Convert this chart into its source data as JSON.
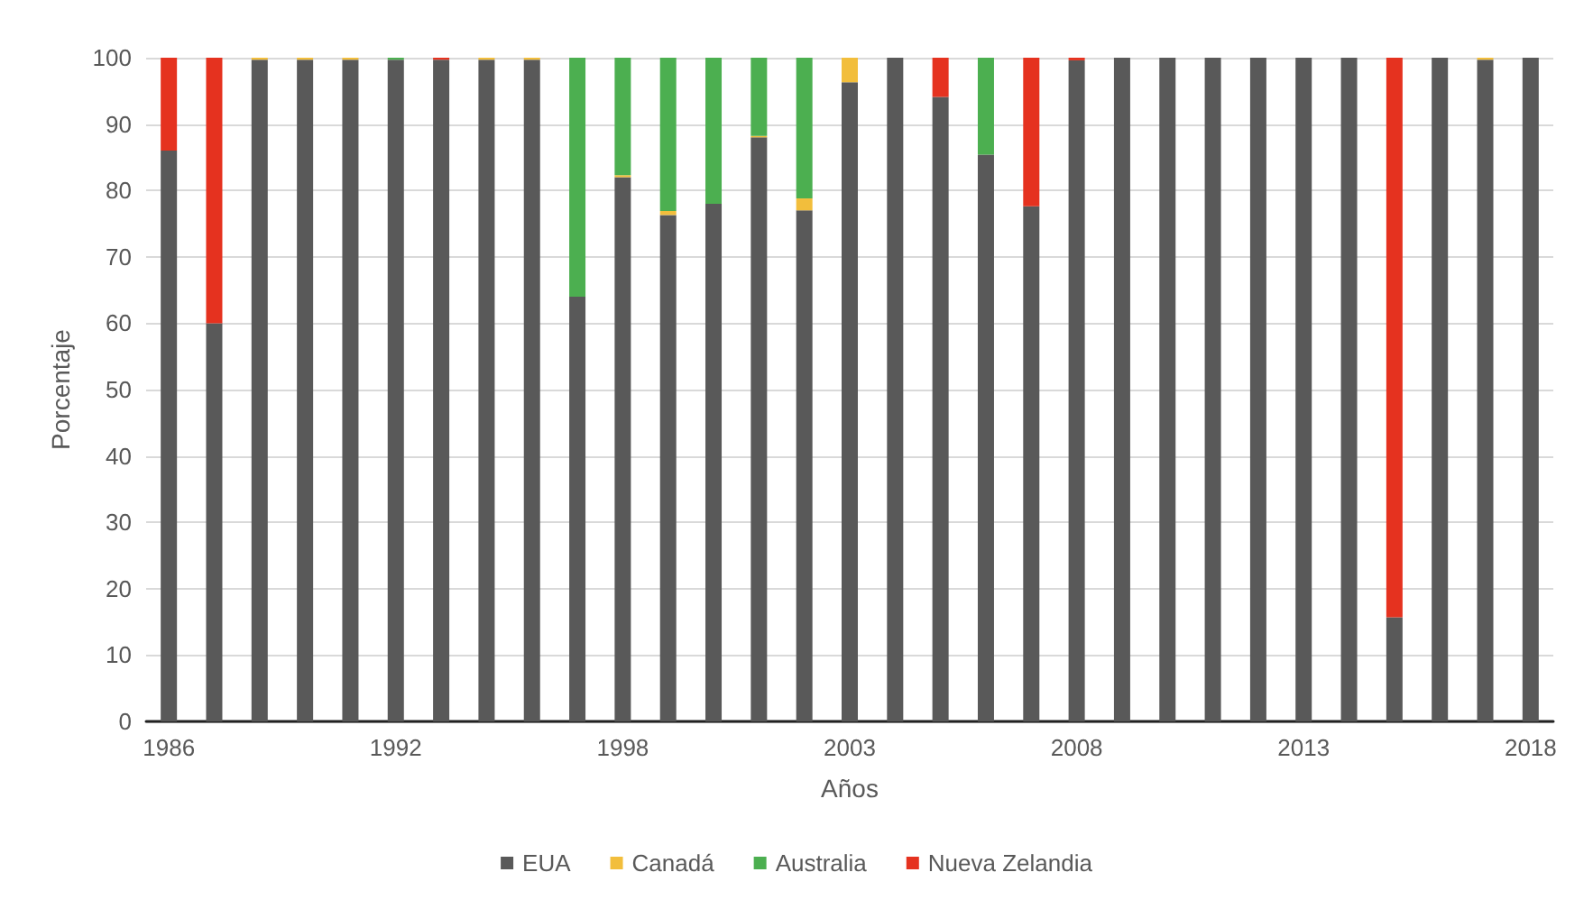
{
  "chart_data": {
    "type": "bar",
    "stacked": true,
    "xlabel": "Años",
    "ylabel": "Porcentaje",
    "categories": [
      "1986",
      null,
      null,
      null,
      null,
      "1992",
      null,
      null,
      null,
      null,
      "1998",
      null,
      null,
      null,
      null,
      "2003",
      null,
      null,
      null,
      null,
      "2008",
      null,
      null,
      null,
      null,
      "2013",
      null,
      null,
      null,
      null,
      "2018"
    ],
    "series": [
      {
        "name": "EUA",
        "color": "#595959",
        "values": [
          86,
          60,
          99.7,
          99.7,
          99.7,
          99.7,
          99.7,
          99.7,
          99.7,
          64,
          82,
          76.3,
          78,
          88,
          77,
          96.3,
          100,
          94.1,
          85.4,
          77.6,
          99.6,
          100,
          100,
          100,
          100,
          100,
          100,
          15.7,
          100,
          99.7,
          100
        ]
      },
      {
        "name": "Canadá",
        "color": "#f2be3c",
        "values": [
          0,
          0,
          0.3,
          0.3,
          0.3,
          0,
          0,
          0.3,
          0.3,
          0,
          0.3,
          0.6,
          0,
          0.2,
          1.8,
          3.7,
          0,
          0,
          0,
          0,
          0,
          0,
          0,
          0,
          0,
          0,
          0,
          0,
          0,
          0.3,
          0
        ]
      },
      {
        "name": "Australia",
        "color": "#4caf50",
        "values": [
          0,
          0,
          0,
          0,
          0,
          0.3,
          0,
          0,
          0,
          36,
          17.7,
          23.1,
          22,
          11.8,
          21.2,
          0,
          0,
          0,
          14.6,
          0,
          0,
          0,
          0,
          0,
          0,
          0,
          0,
          0,
          0,
          0,
          0
        ]
      },
      {
        "name": "Nueva Zelandia",
        "color": "#e5321f",
        "values": [
          14,
          40,
          0,
          0,
          0,
          0,
          0.3,
          0,
          0,
          0,
          0,
          0,
          0,
          0,
          0,
          0,
          0,
          5.9,
          0,
          22.4,
          0.4,
          0,
          0,
          0,
          0,
          0,
          0,
          84.3,
          0,
          0,
          0
        ]
      }
    ],
    "ylim": [
      0,
      100
    ],
    "yticks": [
      0,
      10,
      20,
      30,
      40,
      50,
      60,
      70,
      80,
      90,
      100
    ],
    "grid": "y",
    "legend": "bottom"
  }
}
